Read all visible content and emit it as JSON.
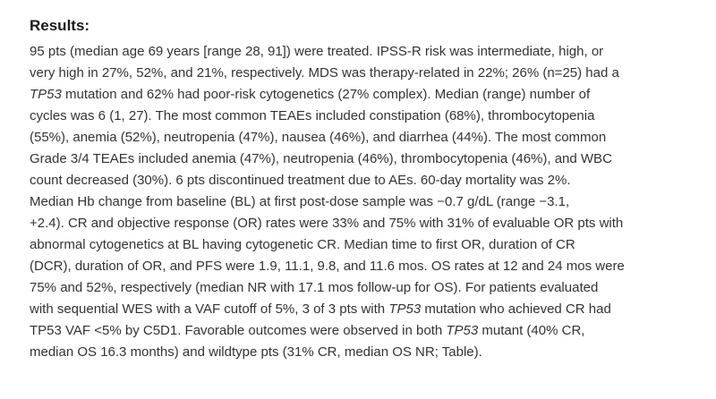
{
  "section": {
    "heading": "Results:",
    "lines": [
      [
        "95 pts (median age 69 years [range 28, 91]) were treated. IPSS-R risk was intermediate, high, or"
      ],
      [
        "very high in 27%, 52%, and 21%, respectively. MDS was therapy-related in 22%; 26% (n=25) had a"
      ],
      [
        "",
        "TP53",
        " mutation and 62% had poor-risk cytogenetics (27% complex). Median (range) number of"
      ],
      [
        "cycles was 6 (1, 27). The most common TEAEs included constipation (68%), thrombocytopenia"
      ],
      [
        "(55%), anemia (52%), neutropenia (47%), nausea (46%), and diarrhea (44%). The most common"
      ],
      [
        "Grade 3/4 TEAEs included anemia (47%), neutropenia (46%), thrombocytopenia (46%), and WBC"
      ],
      [
        "count decreased (30%). 6 pts discontinued treatment due to AEs. 60-day mortality was 2%."
      ],
      [
        "Median Hb change from baseline (BL) at first post-dose sample was −0.7 g/dL (range −3.1,"
      ],
      [
        "+2.4). CR and objective response (OR) rates were 33% and 75% with 31% of evaluable OR pts with"
      ],
      [
        "abnormal cytogenetics at BL having cytogenetic CR. Median time to first OR, duration of CR"
      ],
      [
        "(DCR), duration of OR, and PFS were 1.9, 11.1, 9.8, and 11.6 mos. OS rates at 12 and 24 mos were"
      ],
      [
        "75% and 52%, respectively (median NR with 17.1 mos follow-up for OS). For patients evaluated"
      ],
      [
        "with sequential WES with a VAF cutoff of 5%, 3 of 3 pts with ",
        "TP53",
        " mutation who achieved CR had"
      ],
      [
        "TP53 VAF <5% by C5D1. Favorable outcomes were observed in both ",
        "TP53",
        " mutant (40% CR,"
      ],
      [
        "median OS 16.3 months) and wildtype pts (31% CR, median OS NR; Table)."
      ]
    ]
  }
}
